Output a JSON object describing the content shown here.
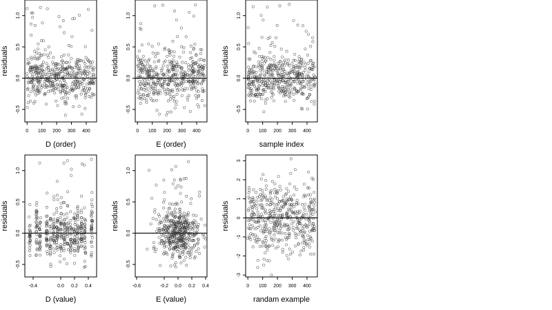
{
  "chart_data": [
    {
      "type": "scatter",
      "xlabel": "D (order)",
      "ylabel": "residuals",
      "xlim": [
        -15,
        470
      ],
      "ylim": [
        -0.7,
        1.25
      ],
      "xticks": [
        0,
        100,
        200,
        300,
        400
      ],
      "yticks": [
        -0.5,
        0.0,
        0.5,
        1.0
      ],
      "ytick_labels": [
        "-0.5",
        "0.0",
        "0.5",
        "1.0"
      ],
      "hline": 0,
      "gen": "index",
      "seed": 11,
      "n": 460
    },
    {
      "type": "scatter",
      "xlabel": "E (order)",
      "ylabel": "residuals",
      "xlim": [
        -15,
        470
      ],
      "ylim": [
        -0.7,
        1.25
      ],
      "xticks": [
        0,
        100,
        200,
        300,
        400
      ],
      "yticks": [
        -0.5,
        0.0,
        0.5,
        1.0
      ],
      "ytick_labels": [
        "-0.5",
        "0.0",
        "0.5",
        "1.0"
      ],
      "hline": 0,
      "gen": "index",
      "seed": 23,
      "n": 460
    },
    {
      "type": "scatter",
      "xlabel": "sample index",
      "ylabel": "residuals",
      "xlim": [
        -15,
        470
      ],
      "ylim": [
        -0.7,
        1.25
      ],
      "xticks": [
        0,
        100,
        200,
        300,
        400
      ],
      "yticks": [
        -0.5,
        0.0,
        0.5,
        1.0
      ],
      "ytick_labels": [
        "-0.5",
        "0.0",
        "0.5",
        "1.0"
      ],
      "hline": 0,
      "gen": "index",
      "seed": 37,
      "n": 460
    },
    {
      "type": "scatter",
      "xlabel": "D (value)",
      "ylabel": "residuals",
      "xlim": [
        -0.52,
        0.52
      ],
      "ylim": [
        -0.7,
        1.25
      ],
      "xticks": [
        -0.4,
        0.0,
        0.2,
        0.4
      ],
      "xtick_labels": [
        "-0.4",
        "0.0",
        "0.2",
        "0.4"
      ],
      "yticks": [
        -0.5,
        0.0,
        0.5,
        1.0
      ],
      "ytick_labels": [
        "-0.5",
        "0.0",
        "0.5",
        "1.0"
      ],
      "hline": 0,
      "gen": "columns",
      "columns": [
        -0.45,
        -0.35,
        -0.3,
        -0.2,
        -0.15,
        -0.1,
        -0.05,
        0.0,
        0.05,
        0.1,
        0.15,
        0.2,
        0.25,
        0.3,
        0.35,
        0.45
      ],
      "seed": 51,
      "n": 460
    },
    {
      "type": "scatter",
      "xlabel": "E (value)",
      "ylabel": "residuals",
      "xlim": [
        -0.62,
        0.42
      ],
      "ylim": [
        -0.7,
        1.25
      ],
      "xticks": [
        -0.6,
        -0.2,
        0.0,
        0.2,
        0.4
      ],
      "xtick_labels": [
        "-0.6",
        "-0.2",
        "0.0",
        "0.2",
        "0.4"
      ],
      "yticks": [
        -0.5,
        0.0,
        0.5,
        1.0
      ],
      "ytick_labels": [
        "-0.5",
        "0.0",
        "0.5",
        "1.0"
      ],
      "hline": 0,
      "gen": "cluster",
      "seed": 67,
      "n": 460
    },
    {
      "type": "scatter",
      "xlabel": "randam example",
      "ylabel": "residuals",
      "xlim": [
        -15,
        470
      ],
      "ylim": [
        -3.1,
        3.3
      ],
      "xticks": [
        0,
        100,
        200,
        300,
        400
      ],
      "yticks": [
        -3,
        -2,
        -1,
        0,
        1,
        2,
        3
      ],
      "ytick_labels": [
        "-3",
        "-2",
        "-1",
        "0",
        "1",
        "2",
        "3"
      ],
      "hline": 0,
      "gen": "normal",
      "seed": 83,
      "n": 460
    }
  ]
}
